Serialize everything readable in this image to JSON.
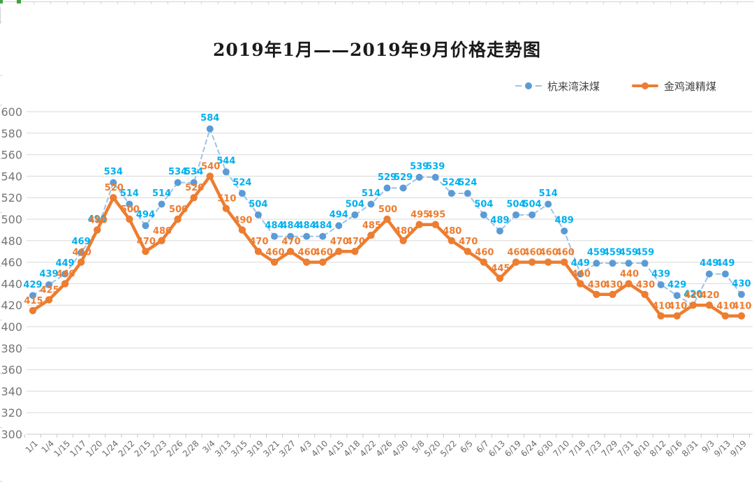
{
  "title": "2019年1月——2019年9月价格走势图",
  "chart_data": {
    "type": "line",
    "title": "2019年1月——2019年9月价格走势图",
    "xlabel": "",
    "ylabel": "",
    "ylim": [
      300,
      600
    ],
    "ytick_step": 20,
    "grid": true,
    "legend_position": "top-right",
    "show_data_labels": true,
    "categories": [
      "1/1",
      "1/4",
      "1/15",
      "1/17",
      "1/20",
      "1/24",
      "2/12",
      "2/15",
      "2/23",
      "2/26",
      "2/28",
      "3/4",
      "3/13",
      "3/15",
      "3/19",
      "3/21",
      "3/27",
      "4/3",
      "4/10",
      "4/15",
      "4/18",
      "4/22",
      "4/26",
      "4/30",
      "5/8",
      "5/20",
      "5/22",
      "6/5",
      "6/7",
      "6/13",
      "6/19",
      "6/24",
      "6/30",
      "7/10",
      "7/18",
      "7/23",
      "7/29",
      "7/31",
      "8/10",
      "8/12",
      "8/16",
      "8/31",
      "9/3",
      "9/13",
      "9/19"
    ],
    "series": [
      {
        "name": "杭来湾沫煤",
        "style": "dashed",
        "line_color": "#9DC3E6",
        "point_color": "#5B9BD5",
        "label_color": "#00B0F0",
        "values": [
          429,
          439,
          449,
          469,
          490,
          534,
          514,
          494,
          514,
          534,
          534,
          584,
          544,
          524,
          504,
          484,
          484,
          484,
          484,
          494,
          504,
          514,
          529,
          529,
          539,
          539,
          524,
          524,
          504,
          489,
          504,
          504,
          514,
          489,
          449,
          459,
          459,
          459,
          459,
          439,
          429,
          420,
          449,
          449,
          430
        ]
      },
      {
        "name": "金鸡滩精煤",
        "style": "solid",
        "line_color": "#ED7D31",
        "point_color": "#ED7D31",
        "label_color": "#ED7D31",
        "values": [
          415,
          425,
          440,
          460,
          490,
          520,
          500,
          470,
          480,
          500,
          520,
          540,
          510,
          490,
          470,
          460,
          470,
          460,
          460,
          470,
          470,
          485,
          500,
          480,
          495,
          495,
          480,
          470,
          460,
          445,
          460,
          460,
          460,
          460,
          440,
          430,
          430,
          440,
          430,
          410,
          410,
          420,
          420,
          410,
          410
        ]
      }
    ]
  }
}
